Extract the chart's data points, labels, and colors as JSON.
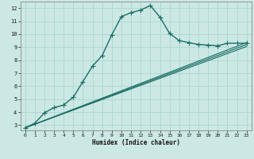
{
  "xlabel": "Humidex (Indice chaleur)",
  "bg_color": "#cce8e4",
  "grid_color": "#b0d8d4",
  "line_color": "#1a6e65",
  "xlim": [
    -0.5,
    23.5
  ],
  "ylim": [
    2.6,
    12.5
  ],
  "xticks": [
    0,
    1,
    2,
    3,
    4,
    5,
    6,
    7,
    8,
    9,
    10,
    11,
    12,
    13,
    14,
    15,
    16,
    17,
    18,
    19,
    20,
    21,
    22,
    23
  ],
  "yticks": [
    3,
    4,
    5,
    6,
    7,
    8,
    9,
    10,
    11,
    12
  ],
  "series": [
    {
      "x": [
        0,
        1,
        2,
        3,
        4,
        5,
        6,
        7,
        8,
        9,
        10,
        11,
        12,
        13,
        14,
        15,
        16,
        17,
        18,
        19,
        20,
        21,
        22,
        23
      ],
      "y": [
        2.8,
        3.15,
        3.95,
        4.35,
        4.55,
        5.15,
        6.35,
        7.55,
        8.35,
        9.95,
        11.35,
        11.65,
        11.85,
        12.2,
        11.3,
        10.05,
        9.5,
        9.35,
        9.2,
        9.15,
        9.1,
        9.3,
        9.3,
        9.3
      ],
      "marker": "+",
      "markersize": 4.0,
      "linewidth": 1.0,
      "zorder": 4
    },
    {
      "x": [
        0,
        23
      ],
      "y": [
        2.8,
        9.3
      ],
      "marker": null,
      "markersize": 0,
      "linewidth": 0.8,
      "zorder": 2
    },
    {
      "x": [
        0,
        23
      ],
      "y": [
        2.8,
        9.3
      ],
      "marker": null,
      "markersize": 0,
      "linewidth": 0.8,
      "zorder": 2
    },
    {
      "x": [
        0,
        23
      ],
      "y": [
        2.8,
        9.3
      ],
      "marker": null,
      "markersize": 0,
      "linewidth": 0.8,
      "zorder": 2
    }
  ]
}
